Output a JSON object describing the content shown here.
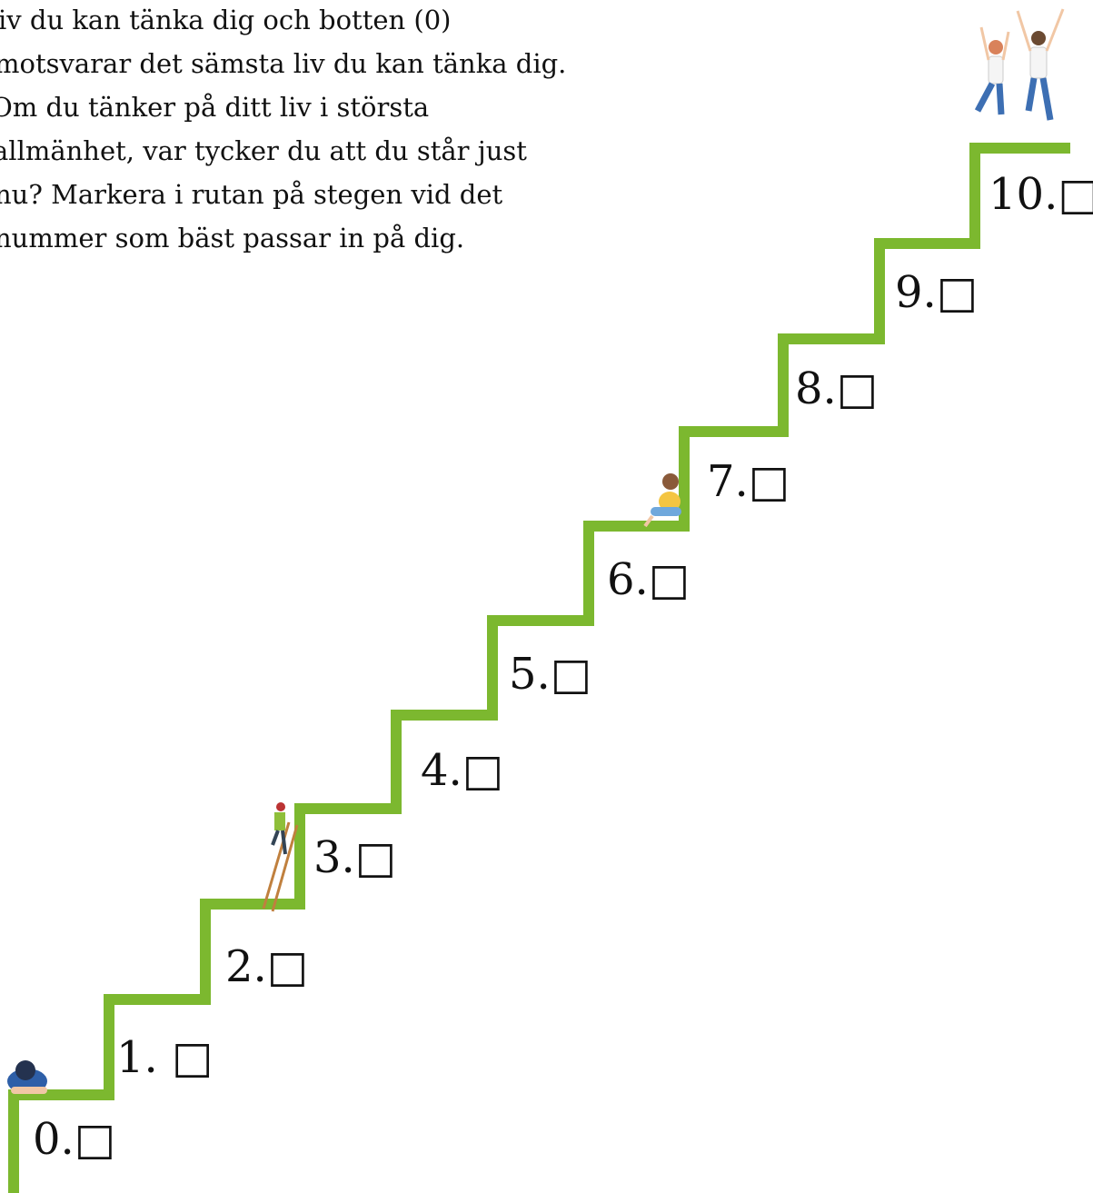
{
  "instructions": {
    "lines": [
      "iv du kan tänka dig och botten (0)",
      "motsvarar det sämsta liv du kan tänka dig.",
      "Om du tänker på ditt liv i största",
      "allmänhet, var tycker du att du står just",
      "nu? Markera i rutan på stegen vid det",
      "nummer som bäst passar in på dig."
    ]
  },
  "steps": [
    {
      "label": "0.□"
    },
    {
      "label": "1. □"
    },
    {
      "label": "2.□"
    },
    {
      "label": "3.□"
    },
    {
      "label": "4.□"
    },
    {
      "label": "5.□"
    },
    {
      "label": "6.□"
    },
    {
      "label": "7.□"
    },
    {
      "label": "8.□"
    },
    {
      "label": "9.□"
    },
    {
      "label": "10.□"
    }
  ]
}
